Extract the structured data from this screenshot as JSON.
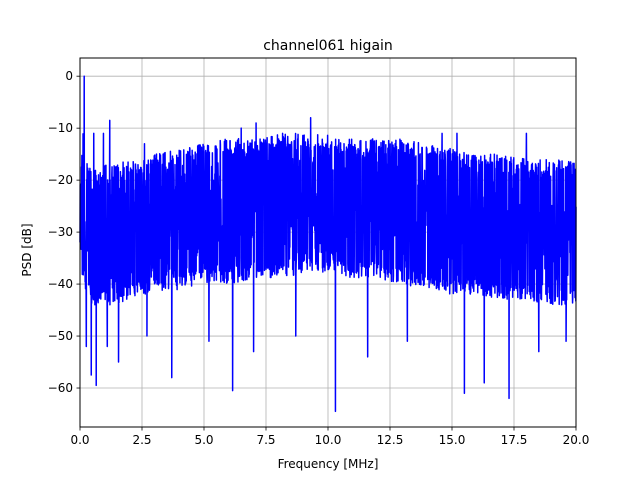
{
  "chart_data": {
    "type": "line",
    "title": "channel061 higain",
    "xlabel": "Frequency [MHz]",
    "ylabel": "PSD [dB]",
    "xlim": [
      0,
      20
    ],
    "ylim": [
      -67.5,
      3.5
    ],
    "xticks": [
      0,
      2.5,
      5,
      7.5,
      10,
      12.5,
      15,
      17.5,
      20
    ],
    "xtick_labels": [
      "0.0",
      "2.5",
      "5.0",
      "7.5",
      "10.0",
      "12.5",
      "15.0",
      "17.5",
      "20.0"
    ],
    "yticks": [
      0,
      -10,
      -20,
      -30,
      -40,
      -50,
      -60
    ],
    "ytick_labels": [
      "0",
      "−10",
      "−20",
      "−30",
      "−40",
      "−50",
      "−60"
    ],
    "grid": true,
    "series": [
      {
        "color": "#0000ff",
        "envelope": {
          "x": [
            0,
            0.15,
            0.3,
            0.5,
            1,
            1.5,
            2,
            2.5,
            3,
            4,
            5,
            6,
            7,
            8,
            9,
            10,
            11,
            12,
            13,
            14,
            15,
            16,
            17,
            18,
            19,
            20
          ],
          "upper": [
            -20,
            -8,
            -16,
            -18,
            -17,
            -17,
            -16,
            -16,
            -15,
            -14,
            -13,
            -12,
            -12,
            -11,
            -11,
            -11,
            -12,
            -12,
            -12,
            -13,
            -14,
            -15,
            -15,
            -16,
            -16,
            -16
          ],
          "lower": [
            -38,
            -40,
            -42,
            -44,
            -44,
            -44,
            -43,
            -42,
            -42,
            -41,
            -40,
            -40,
            -39,
            -39,
            -38,
            -38,
            -39,
            -39,
            -40,
            -41,
            -42,
            -42,
            -43,
            -43,
            -44,
            -44
          ]
        },
        "peaks": [
          {
            "x": 0.17,
            "y": 0
          },
          {
            "x": 0.55,
            "y": -11
          },
          {
            "x": 0.95,
            "y": -11
          },
          {
            "x": 1.2,
            "y": -8.5
          },
          {
            "x": 2.6,
            "y": -13
          },
          {
            "x": 6.5,
            "y": -10
          },
          {
            "x": 7.1,
            "y": -9
          },
          {
            "x": 9.3,
            "y": -8
          },
          {
            "x": 14.6,
            "y": -11
          },
          {
            "x": 15.2,
            "y": -11
          },
          {
            "x": 18.0,
            "y": -11
          }
        ],
        "dips": [
          {
            "x": 0.25,
            "y": -52
          },
          {
            "x": 0.45,
            "y": -57.5
          },
          {
            "x": 0.65,
            "y": -59.5
          },
          {
            "x": 1.1,
            "y": -52
          },
          {
            "x": 1.55,
            "y": -55
          },
          {
            "x": 2.7,
            "y": -50
          },
          {
            "x": 3.7,
            "y": -58
          },
          {
            "x": 5.2,
            "y": -51
          },
          {
            "x": 6.15,
            "y": -60.5
          },
          {
            "x": 7.0,
            "y": -53
          },
          {
            "x": 8.7,
            "y": -50
          },
          {
            "x": 10.3,
            "y": -64.5
          },
          {
            "x": 11.6,
            "y": -54
          },
          {
            "x": 13.2,
            "y": -51
          },
          {
            "x": 15.5,
            "y": -61
          },
          {
            "x": 16.3,
            "y": -59
          },
          {
            "x": 17.3,
            "y": -62
          },
          {
            "x": 18.5,
            "y": -53
          },
          {
            "x": 19.6,
            "y": -51
          }
        ]
      }
    ]
  }
}
